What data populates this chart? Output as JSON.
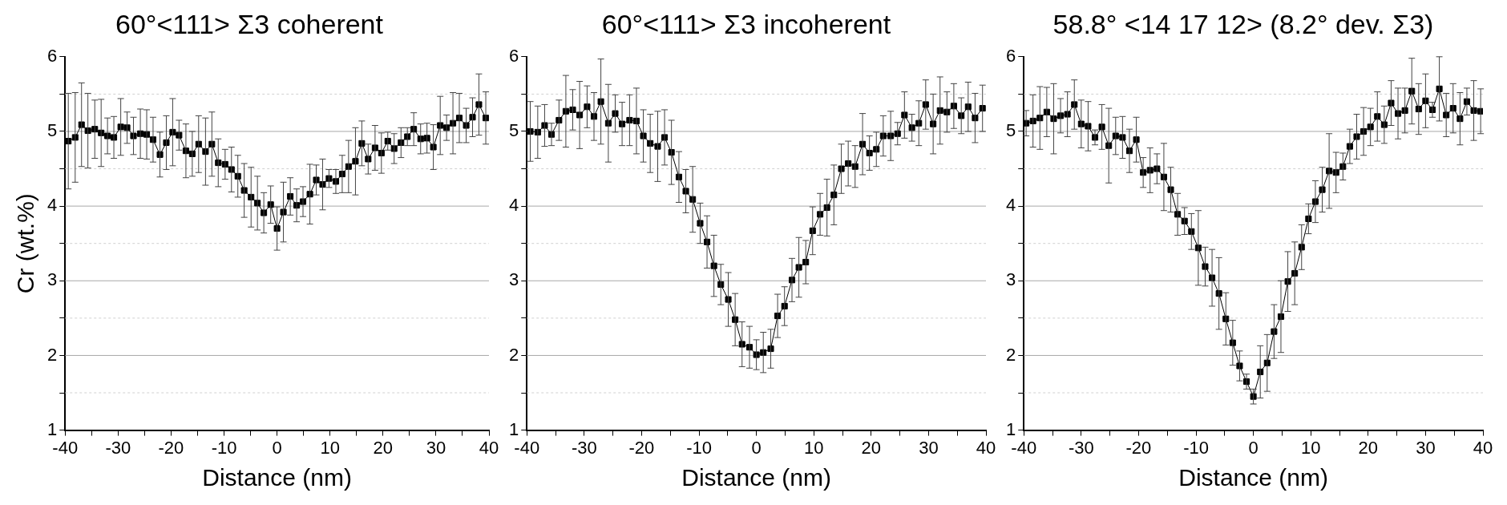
{
  "chart_data": [
    {
      "type": "line",
      "title": "60°<111> Σ3 coherent",
      "xlabel": "Distance (nm)",
      "ylabel": "Cr (wt.%)",
      "marker": "square",
      "line_style": "solid",
      "grid": "y",
      "xlim": [
        -40,
        40
      ],
      "xticks": [
        -40,
        {
          "value": -35,
          "label": null
        },
        -30,
        {
          "value": -25,
          "label": null
        },
        -20,
        {
          "value": -15,
          "label": null
        },
        -10,
        {
          "value": -5,
          "label": null
        },
        0,
        {
          "value": 5,
          "label": null
        },
        10,
        {
          "value": 15,
          "label": null
        },
        20,
        {
          "value": 25,
          "label": null
        },
        30,
        {
          "value": 35,
          "label": null
        },
        40
      ],
      "ylim": [
        1,
        6
      ],
      "yticks": [
        1,
        {
          "value": 1.5,
          "label": null
        },
        2,
        {
          "value": 2.5,
          "label": null
        },
        3,
        {
          "value": 3.5,
          "label": null
        },
        4,
        {
          "value": 4.5,
          "label": null
        },
        5,
        {
          "value": 5.5,
          "label": null
        },
        6
      ],
      "x": [
        -39.4,
        -38.1,
        -36.9,
        -35.7,
        -34.4,
        -33.2,
        -32.0,
        -30.8,
        -29.5,
        -28.3,
        -27.1,
        -25.8,
        -24.6,
        -23.4,
        -22.1,
        -20.9,
        -19.7,
        -18.5,
        -17.2,
        -16.0,
        -14.8,
        -13.5,
        -12.3,
        -11.1,
        -9.8,
        -8.6,
        -7.4,
        -6.2,
        -4.9,
        -3.7,
        -2.5,
        -1.2,
        0,
        1.2,
        2.5,
        3.7,
        4.9,
        6.2,
        7.4,
        8.6,
        9.8,
        11.1,
        12.3,
        13.5,
        14.8,
        16.0,
        17.2,
        18.5,
        19.7,
        20.9,
        22.1,
        23.4,
        24.6,
        25.8,
        27.1,
        28.3,
        29.5,
        30.8,
        32.0,
        33.2,
        34.4,
        35.7,
        36.9,
        38.1,
        39.4
      ],
      "series": [
        {
          "color": "#000000",
          "values": [
            4.87,
            4.92,
            5.09,
            5.01,
            5.03,
            4.98,
            4.94,
            4.92,
            5.06,
            5.05,
            4.94,
            4.97,
            4.96,
            4.89,
            4.69,
            4.85,
            4.99,
            4.95,
            4.74,
            4.7,
            4.83,
            4.73,
            4.83,
            4.58,
            4.56,
            4.49,
            4.4,
            4.21,
            4.12,
            4.04,
            3.91,
            4.02,
            3.7,
            3.92,
            4.13,
            4.01,
            4.06,
            4.16,
            4.35,
            4.29,
            4.37,
            4.33,
            4.43,
            4.53,
            4.6,
            4.84,
            4.63,
            4.78,
            4.71,
            4.87,
            4.77,
            4.85,
            4.93,
            5.03,
            4.9,
            4.91,
            4.79,
            5.08,
            5.05,
            5.11,
            5.18,
            5.08,
            5.19,
            5.36,
            5.18
          ],
          "errors": [
            0.64,
            0.6,
            0.56,
            0.5,
            0.39,
            0.45,
            0.24,
            0.28,
            0.38,
            0.21,
            0.25,
            0.33,
            0.33,
            0.3,
            0.3,
            0.36,
            0.45,
            0.2,
            0.36,
            0.3,
            0.38,
            0.45,
            0.43,
            0.32,
            0.2,
            0.3,
            0.28,
            0.36,
            0.4,
            0.36,
            0.27,
            0.25,
            0.29,
            0.4,
            0.25,
            0.22,
            0.2,
            0.4,
            0.2,
            0.34,
            0.12,
            0.16,
            0.25,
            0.35,
            0.45,
            0.3,
            0.2,
            0.3,
            0.27,
            0.12,
            0.2,
            0.2,
            0.12,
            0.22,
            0.2,
            0.2,
            0.3,
            0.39,
            0.17,
            0.41,
            0.33,
            0.23,
            0.26,
            0.41,
            0.35
          ]
        }
      ]
    },
    {
      "type": "line",
      "title": "60°<111> Σ3 incoherent",
      "xlabel": "Distance (nm)",
      "marker": "square",
      "line_style": "solid",
      "grid": "y",
      "xlim": [
        -40,
        40
      ],
      "xticks": [
        -40,
        {
          "value": -35,
          "label": null
        },
        -30,
        {
          "value": -25,
          "label": null
        },
        -20,
        {
          "value": -15,
          "label": null
        },
        -10,
        {
          "value": -5,
          "label": null
        },
        0,
        {
          "value": 5,
          "label": null
        },
        10,
        {
          "value": 15,
          "label": null
        },
        20,
        {
          "value": 25,
          "label": null
        },
        30,
        {
          "value": 35,
          "label": null
        },
        40
      ],
      "ylim": [
        1,
        6
      ],
      "yticks": [
        1,
        {
          "value": 1.5,
          "label": null
        },
        2,
        {
          "value": 2.5,
          "label": null
        },
        3,
        {
          "value": 3.5,
          "label": null
        },
        4,
        {
          "value": 4.5,
          "label": null
        },
        5,
        {
          "value": 5.5,
          "label": null
        },
        6
      ],
      "x": [
        -39.4,
        -38.1,
        -36.9,
        -35.7,
        -34.4,
        -33.2,
        -32.0,
        -30.8,
        -29.5,
        -28.3,
        -27.1,
        -25.8,
        -24.6,
        -23.4,
        -22.1,
        -20.9,
        -19.7,
        -18.5,
        -17.2,
        -16.0,
        -14.8,
        -13.5,
        -12.3,
        -11.1,
        -9.8,
        -8.6,
        -7.4,
        -6.2,
        -4.9,
        -3.7,
        -2.5,
        -1.2,
        0,
        1.2,
        2.5,
        3.7,
        4.9,
        6.2,
        7.4,
        8.6,
        9.8,
        11.1,
        12.3,
        13.5,
        14.8,
        16.0,
        17.2,
        18.5,
        19.7,
        20.9,
        22.1,
        23.4,
        24.6,
        25.8,
        27.1,
        28.3,
        29.5,
        30.8,
        32.0,
        33.2,
        34.4,
        35.7,
        36.9,
        38.1,
        39.4
      ],
      "series": [
        {
          "color": "#000000",
          "values": [
            5.0,
            4.99,
            5.08,
            4.96,
            5.15,
            5.27,
            5.29,
            5.22,
            5.33,
            5.2,
            5.4,
            5.11,
            5.24,
            5.1,
            5.15,
            5.14,
            4.94,
            4.84,
            4.8,
            4.92,
            4.72,
            4.39,
            4.2,
            4.09,
            3.77,
            3.52,
            3.2,
            2.95,
            2.75,
            2.48,
            2.15,
            2.11,
            2.01,
            2.04,
            2.09,
            2.53,
            2.66,
            3.01,
            3.18,
            3.25,
            3.67,
            3.89,
            3.98,
            4.15,
            4.5,
            4.57,
            4.53,
            4.83,
            4.71,
            4.76,
            4.94,
            4.94,
            4.97,
            5.22,
            5.05,
            5.11,
            5.36,
            5.1,
            5.28,
            5.26,
            5.34,
            5.21,
            5.33,
            5.18,
            5.31
          ],
          "errors": [
            0.4,
            0.35,
            0.28,
            0.15,
            0.27,
            0.48,
            0.27,
            0.45,
            0.28,
            0.32,
            0.57,
            0.52,
            0.25,
            0.29,
            0.34,
            0.44,
            0.35,
            0.39,
            0.47,
            0.37,
            0.43,
            0.34,
            0.29,
            0.44,
            0.27,
            0.35,
            0.41,
            0.27,
            0.36,
            0.35,
            0.3,
            0.28,
            0.2,
            0.27,
            0.26,
            0.29,
            0.26,
            0.29,
            0.4,
            0.29,
            0.32,
            0.28,
            0.38,
            0.4,
            0.33,
            0.3,
            0.28,
            0.41,
            0.23,
            0.23,
            0.27,
            0.33,
            0.15,
            0.31,
            0.18,
            0.3,
            0.33,
            0.4,
            0.45,
            0.27,
            0.3,
            0.24,
            0.33,
            0.33,
            0.31
          ]
        }
      ]
    },
    {
      "type": "line",
      "title": "58.8° <14 17 12> (8.2° dev. Σ3)",
      "xlabel": "Distance (nm)",
      "marker": "square",
      "line_style": "solid",
      "grid": "y",
      "xlim": [
        -40,
        40
      ],
      "xticks": [
        -40,
        {
          "value": -35,
          "label": null
        },
        -30,
        {
          "value": -25,
          "label": null
        },
        -20,
        {
          "value": -15,
          "label": null
        },
        -10,
        {
          "value": -5,
          "label": null
        },
        0,
        {
          "value": 5,
          "label": null
        },
        10,
        {
          "value": 15,
          "label": null
        },
        20,
        {
          "value": 25,
          "label": null
        },
        30,
        {
          "value": 35,
          "label": null
        },
        40
      ],
      "ylim": [
        1,
        6
      ],
      "yticks": [
        1,
        {
          "value": 1.5,
          "label": null
        },
        2,
        {
          "value": 2.5,
          "label": null
        },
        3,
        {
          "value": 3.5,
          "label": null
        },
        4,
        {
          "value": 4.5,
          "label": null
        },
        5,
        {
          "value": 5.5,
          "label": null
        },
        6
      ],
      "x": [
        -39.6,
        -38.4,
        -37.2,
        -36.0,
        -34.8,
        -33.6,
        -32.4,
        -31.2,
        -30.0,
        -28.8,
        -27.6,
        -26.4,
        -25.2,
        -24.0,
        -22.8,
        -21.6,
        -20.4,
        -19.2,
        -18.0,
        -16.8,
        -15.6,
        -14.4,
        -13.2,
        -12.0,
        -10.8,
        -9.6,
        -8.4,
        -7.2,
        -6.0,
        -4.8,
        -3.6,
        -2.4,
        -1.2,
        0,
        1.2,
        2.4,
        3.6,
        4.8,
        6.0,
        7.2,
        8.4,
        9.6,
        10.8,
        12.0,
        13.2,
        14.4,
        15.6,
        16.8,
        18.0,
        19.2,
        20.4,
        21.6,
        22.8,
        24.0,
        25.2,
        26.4,
        27.6,
        28.8,
        30.0,
        31.2,
        32.4,
        33.6,
        34.8,
        36.0,
        37.2,
        38.4,
        39.6
      ],
      "series": [
        {
          "color": "#000000",
          "values": [
            5.11,
            5.14,
            5.18,
            5.26,
            5.17,
            5.21,
            5.23,
            5.36,
            5.1,
            5.07,
            4.92,
            5.06,
            4.81,
            4.94,
            4.92,
            4.74,
            4.89,
            4.45,
            4.48,
            4.5,
            4.39,
            4.22,
            3.89,
            3.8,
            3.66,
            3.44,
            3.19,
            3.04,
            2.83,
            2.49,
            2.17,
            1.86,
            1.65,
            1.45,
            1.78,
            1.9,
            2.32,
            2.52,
            2.99,
            3.1,
            3.45,
            3.83,
            4.06,
            4.22,
            4.47,
            4.45,
            4.53,
            4.8,
            4.93,
            5.0,
            5.06,
            5.2,
            5.09,
            5.38,
            5.24,
            5.28,
            5.54,
            5.3,
            5.41,
            5.29,
            5.57,
            5.22,
            5.31,
            5.17,
            5.4,
            5.28,
            5.27
          ],
          "errors": [
            0.17,
            0.35,
            0.42,
            0.33,
            0.47,
            0.23,
            0.3,
            0.33,
            0.32,
            0.33,
            0.1,
            0.3,
            0.5,
            0.25,
            0.28,
            0.29,
            0.3,
            0.2,
            0.3,
            0.2,
            0.45,
            0.3,
            0.28,
            0.18,
            0.24,
            0.5,
            0.26,
            0.38,
            0.48,
            0.35,
            0.3,
            0.2,
            0.1,
            0.1,
            0.35,
            0.38,
            0.36,
            0.48,
            0.4,
            0.42,
            0.3,
            0.2,
            0.28,
            0.3,
            0.5,
            0.27,
            0.18,
            0.23,
            0.3,
            0.32,
            0.25,
            0.33,
            0.25,
            0.3,
            0.34,
            0.3,
            0.44,
            0.34,
            0.36,
            0.1,
            0.43,
            0.29,
            0.33,
            0.35,
            0.18,
            0.4,
            0.3
          ]
        }
      ]
    }
  ]
}
